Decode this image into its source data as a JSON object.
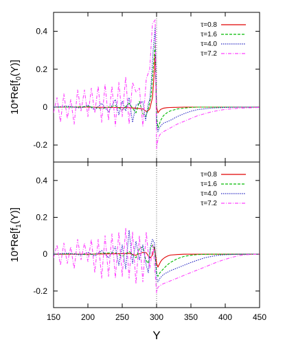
{
  "colors": {
    "tau_0_8": "#e00000",
    "tau_1_6": "#00bb00",
    "tau_4_0": "#2020c0",
    "tau_7_2": "#ff40ff",
    "reference_line": "#000000"
  },
  "shared_xlabel": "Y",
  "chart_data": [
    {
      "type": "line",
      "ylabel": "10*Re[f₀(Y)]",
      "ylabel_main": "10*Re[f",
      "ylabel_sub": "0",
      "ylabel_tail": "(Y)]",
      "xlim": [
        150,
        450
      ],
      "ylim": [
        -0.29,
        0.5
      ],
      "xticks": [
        150,
        200,
        250,
        300,
        350,
        400,
        450
      ],
      "yticks": [
        -0.2,
        0,
        0.2,
        0.4
      ],
      "ytick_labels": [
        "-0.2",
        "0",
        "0.2",
        "0.4"
      ],
      "show_xtick_labels": false,
      "reference_x": 300,
      "legend_position": "top-right",
      "series": [
        {
          "name": "τ=0.8",
          "color_key": "tau_0_8",
          "style": "solid",
          "x": [
            150,
            200,
            240,
            260,
            270,
            280,
            286,
            290,
            294,
            296,
            298,
            300,
            302,
            304,
            306,
            310,
            315,
            320,
            330,
            340,
            360,
            400,
            450
          ],
          "y": [
            0,
            0,
            -0.002,
            -0.003,
            -0.006,
            -0.01,
            -0.025,
            -0.01,
            0.05,
            0.15,
            0.28,
            0.0,
            -0.03,
            -0.02,
            -0.012,
            -0.006,
            -0.003,
            -0.002,
            -0.001,
            0,
            0,
            0,
            0
          ]
        },
        {
          "name": "τ=1.6",
          "color_key": "tau_1_6",
          "style": "dashed",
          "x": [
            150,
            180,
            200,
            220,
            240,
            250,
            260,
            270,
            275,
            280,
            284,
            288,
            292,
            295,
            298,
            300,
            302,
            304,
            306,
            310,
            315,
            320,
            330,
            340,
            350,
            360,
            380,
            400,
            450
          ],
          "y": [
            0,
            0,
            0.003,
            -0.008,
            0.008,
            -0.015,
            0.02,
            -0.03,
            0.03,
            -0.035,
            -0.05,
            -0.01,
            0.06,
            0.2,
            0.34,
            -0.05,
            -0.11,
            -0.09,
            -0.07,
            -0.045,
            -0.03,
            -0.02,
            -0.01,
            -0.005,
            -0.002,
            0,
            0,
            0,
            0
          ]
        },
        {
          "name": "τ=4.0",
          "color_key": "tau_4_0",
          "style": "dotted",
          "x": [
            150,
            170,
            190,
            200,
            210,
            220,
            230,
            240,
            245,
            250,
            255,
            260,
            265,
            270,
            275,
            280,
            284,
            288,
            290,
            292,
            295,
            298,
            300,
            302,
            304,
            306,
            310,
            320,
            330,
            340,
            350,
            360,
            380,
            400,
            420,
            450
          ],
          "y": [
            0,
            0.005,
            -0.005,
            0.01,
            -0.015,
            0.02,
            -0.025,
            0.04,
            -0.04,
            0.03,
            -0.02,
            0.05,
            -0.08,
            0.01,
            0.02,
            0.03,
            -0.07,
            0.02,
            0.04,
            0.12,
            0.3,
            0.42,
            -0.07,
            -0.13,
            -0.11,
            -0.1,
            -0.085,
            -0.07,
            -0.05,
            -0.035,
            -0.022,
            -0.013,
            -0.005,
            -0.002,
            0,
            0
          ]
        },
        {
          "name": "τ=7.2",
          "color_key": "tau_7_2",
          "style": "dashdot",
          "x": [
            150,
            155,
            160,
            165,
            170,
            175,
            180,
            185,
            190,
            195,
            200,
            205,
            210,
            215,
            220,
            225,
            230,
            235,
            240,
            245,
            250,
            255,
            260,
            265,
            270,
            275,
            280,
            285,
            290,
            294,
            298,
            300,
            302,
            304,
            306,
            310,
            320,
            330,
            340,
            350,
            360,
            370,
            380,
            390,
            400,
            420,
            450
          ],
          "y": [
            -0.03,
            0.05,
            -0.08,
            0.07,
            -0.06,
            0.04,
            -0.09,
            0.09,
            -0.02,
            0.09,
            -0.05,
            0.1,
            -0.03,
            0.11,
            -0.08,
            0.12,
            -0.07,
            0.11,
            -0.1,
            0.13,
            -0.05,
            0.16,
            -0.09,
            0.13,
            0.08,
            0.1,
            -0.1,
            0.15,
            0.2,
            0.44,
            0.46,
            -0.22,
            -0.17,
            -0.15,
            -0.14,
            -0.13,
            -0.11,
            -0.09,
            -0.075,
            -0.06,
            -0.045,
            -0.035,
            -0.025,
            -0.018,
            -0.012,
            -0.006,
            -0.002
          ]
        }
      ]
    },
    {
      "type": "line",
      "ylabel": "10*Re[f₁(Y)]",
      "ylabel_main": "10*Re[f",
      "ylabel_sub": "1",
      "ylabel_tail": "(Y)]",
      "xlabel": "Y",
      "xlim": [
        150,
        450
      ],
      "ylim": [
        -0.29,
        0.5
      ],
      "xticks": [
        150,
        200,
        250,
        300,
        350,
        400,
        450
      ],
      "xtick_labels": [
        "150",
        "200",
        "250",
        "300",
        "350",
        "400",
        "450"
      ],
      "yticks": [
        -0.2,
        0,
        0.2,
        0.4
      ],
      "ytick_labels": [
        "-0.2",
        "0",
        "0.2",
        "0.4"
      ],
      "show_xtick_labels": true,
      "reference_x": 300,
      "legend_position": "top-right",
      "series": [
        {
          "name": "τ=0.8",
          "color_key": "tau_0_8",
          "style": "solid",
          "x": [
            150,
            200,
            240,
            260,
            270,
            280,
            285,
            288,
            291,
            294,
            297,
            300,
            302,
            304,
            306,
            308,
            312,
            316,
            320,
            330,
            340,
            360,
            400,
            450
          ],
          "y": [
            0,
            0,
            0.002,
            0.004,
            -0.006,
            0.01,
            0.008,
            -0.01,
            -0.02,
            -0.005,
            0.04,
            -0.05,
            -0.07,
            -0.055,
            -0.04,
            -0.03,
            -0.018,
            -0.01,
            -0.005,
            -0.002,
            0,
            0,
            0,
            0
          ]
        },
        {
          "name": "τ=1.6",
          "color_key": "tau_1_6",
          "style": "dashed",
          "x": [
            150,
            180,
            200,
            220,
            240,
            250,
            260,
            270,
            275,
            280,
            284,
            288,
            291,
            294,
            297,
            300,
            302,
            305,
            310,
            315,
            320,
            330,
            340,
            350,
            360,
            380,
            400,
            450
          ],
          "y": [
            0,
            0.002,
            -0.003,
            0.005,
            0.008,
            -0.012,
            0.015,
            -0.02,
            0.03,
            0.04,
            -0.03,
            -0.05,
            0.03,
            0.05,
            0.03,
            -0.1,
            -0.12,
            -0.1,
            -0.08,
            -0.06,
            -0.045,
            -0.025,
            -0.012,
            -0.006,
            -0.002,
            0,
            0,
            0
          ]
        },
        {
          "name": "τ=4.0",
          "color_key": "tau_4_0",
          "style": "dotted",
          "x": [
            150,
            170,
            190,
            200,
            210,
            220,
            230,
            240,
            245,
            250,
            255,
            260,
            265,
            270,
            275,
            280,
            285,
            288,
            291,
            294,
            297,
            300,
            302,
            305,
            310,
            320,
            330,
            340,
            350,
            360,
            370,
            380,
            390,
            400,
            420,
            450
          ],
          "y": [
            0,
            0.005,
            -0.005,
            0.01,
            -0.01,
            0.02,
            -0.02,
            0.04,
            -0.06,
            0.05,
            -0.08,
            0.13,
            -0.05,
            0.07,
            -0.03,
            0.05,
            -0.06,
            -0.1,
            0.04,
            0.08,
            0.06,
            -0.13,
            -0.15,
            -0.13,
            -0.11,
            -0.09,
            -0.075,
            -0.06,
            -0.045,
            -0.032,
            -0.02,
            -0.012,
            -0.006,
            -0.003,
            0,
            0
          ]
        },
        {
          "name": "τ=7.2",
          "color_key": "tau_7_2",
          "style": "dashdot",
          "x": [
            150,
            155,
            160,
            165,
            170,
            175,
            180,
            185,
            190,
            195,
            200,
            205,
            210,
            215,
            220,
            225,
            230,
            235,
            240,
            245,
            250,
            255,
            260,
            265,
            270,
            275,
            280,
            285,
            290,
            295,
            300,
            302,
            305,
            310,
            320,
            330,
            340,
            350,
            360,
            370,
            380,
            390,
            400,
            410,
            420,
            430,
            440,
            450
          ],
          "y": [
            -0.02,
            0.05,
            -0.06,
            0.06,
            -0.05,
            0.04,
            -0.08,
            0.08,
            -0.03,
            0.06,
            -0.04,
            0.08,
            -0.1,
            0.08,
            -0.13,
            0.1,
            -0.12,
            0.11,
            -0.13,
            0.12,
            -0.12,
            0.14,
            -0.13,
            0.12,
            -0.16,
            0.1,
            -0.15,
            0.12,
            -0.08,
            0.05,
            -0.21,
            -0.18,
            -0.17,
            -0.16,
            -0.145,
            -0.13,
            -0.115,
            -0.1,
            -0.085,
            -0.07,
            -0.055,
            -0.04,
            -0.028,
            -0.017,
            -0.008,
            -0.003,
            -0.001,
            0
          ]
        }
      ]
    }
  ]
}
